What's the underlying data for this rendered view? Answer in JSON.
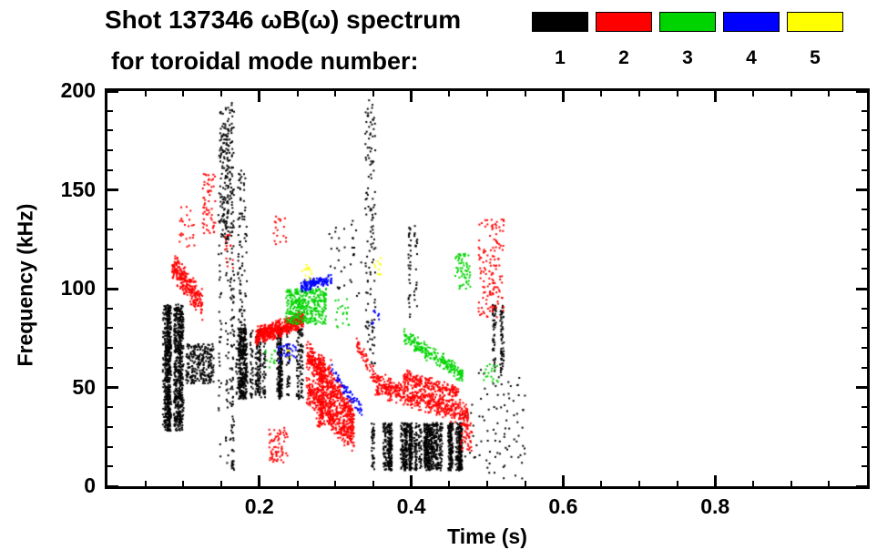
{
  "title": {
    "line1": "Shot 137346 ωB(ω) spectrum",
    "line2": "for toroidal mode number:"
  },
  "axes": {
    "xlabel": "Time (s)",
    "ylabel": "Frequency (kHz)",
    "x_ticks": [
      "0.2",
      "0.4",
      "0.6",
      "0.8"
    ],
    "y_ticks": [
      "0",
      "50",
      "100",
      "150",
      "200"
    ]
  },
  "chart_data": {
    "type": "scatter",
    "title": "Shot 137346 ωB(ω) spectrum for toroidal mode number",
    "xlabel": "Time (s)",
    "ylabel": "Frequency (kHz)",
    "xlim": [
      0.0,
      1.0
    ],
    "ylim": [
      0,
      200
    ],
    "x_tick_values": [
      0.2,
      0.4,
      0.6,
      0.8
    ],
    "y_tick_values": [
      0,
      50,
      100,
      150,
      200
    ],
    "x_minor_step": 0.05,
    "y_minor_step": 10,
    "grid": false,
    "legend": {
      "position": "top-right",
      "labels": [
        "1",
        "2",
        "3",
        "4",
        "5"
      ],
      "colors": [
        "#000000",
        "#ff0000",
        "#00d400",
        "#0000ff",
        "#ffff00"
      ]
    },
    "series": [
      {
        "name": "1",
        "meaning": "toroidal mode n=1",
        "color": "#000000"
      },
      {
        "name": "2",
        "meaning": "toroidal mode n=2",
        "color": "#ff0000"
      },
      {
        "name": "3",
        "meaning": "toroidal mode n=3",
        "color": "#00d400"
      },
      {
        "name": "4",
        "meaning": "toroidal mode n=4",
        "color": "#0000ff"
      },
      {
        "name": "5",
        "meaning": "toroidal mode n=5",
        "color": "#ffff00"
      }
    ],
    "clusters": [
      {
        "mode": 1,
        "type": "vlines",
        "t": [
          0.072,
          0.105
        ],
        "f": [
          28,
          92
        ],
        "n": 1100,
        "lines": 12
      },
      {
        "mode": 1,
        "type": "blob",
        "t": [
          0.103,
          0.14
        ],
        "f": [
          52,
          72
        ],
        "n": 260
      },
      {
        "mode": 1,
        "type": "vlines",
        "t": [
          0.148,
          0.168
        ],
        "f": [
          8,
          195
        ],
        "n": 220,
        "lines": 5
      },
      {
        "mode": 1,
        "type": "vlines",
        "t": [
          0.15,
          0.161
        ],
        "f": [
          125,
          192
        ],
        "n": 150,
        "lines": 4
      },
      {
        "mode": 1,
        "type": "vlines",
        "t": [
          0.165,
          0.262
        ],
        "f": [
          44,
          80
        ],
        "n": 900,
        "lines": 22
      },
      {
        "mode": 1,
        "type": "vlines",
        "t": [
          0.168,
          0.186
        ],
        "f": [
          80,
          160
        ],
        "n": 90,
        "lines": 3
      },
      {
        "mode": 1,
        "type": "vlines",
        "t": [
          0.34,
          0.358
        ],
        "f": [
          60,
          196
        ],
        "n": 130,
        "lines": 4
      },
      {
        "mode": 1,
        "type": "vlines",
        "t": [
          0.345,
          0.47
        ],
        "f": [
          8,
          32
        ],
        "n": 1500,
        "lines": 30
      },
      {
        "mode": 1,
        "type": "vlines",
        "t": [
          0.395,
          0.406
        ],
        "f": [
          85,
          132
        ],
        "n": 50,
        "lines": 2
      },
      {
        "mode": 1,
        "type": "blob",
        "t": [
          0.47,
          0.55
        ],
        "f": [
          2,
          60
        ],
        "n": 90
      },
      {
        "mode": 1,
        "type": "vlines",
        "t": [
          0.505,
          0.522
        ],
        "f": [
          58,
          92
        ],
        "n": 110,
        "lines": 4
      },
      {
        "mode": 1,
        "type": "blob",
        "t": [
          0.29,
          0.335
        ],
        "f": [
          95,
          135
        ],
        "n": 35
      },
      {
        "mode": 2,
        "type": "curve",
        "t": [
          0.085,
          0.125
        ],
        "f": [
          112,
          92
        ],
        "n": 260,
        "jitter": 8
      },
      {
        "mode": 2,
        "type": "blob",
        "t": [
          0.125,
          0.142
        ],
        "f": [
          128,
          158
        ],
        "n": 60
      },
      {
        "mode": 2,
        "type": "blob",
        "t": [
          0.095,
          0.115
        ],
        "f": [
          118,
          142
        ],
        "n": 25
      },
      {
        "mode": 2,
        "type": "curve",
        "t": [
          0.195,
          0.258
        ],
        "f": [
          76,
          84
        ],
        "n": 550,
        "jitter": 5
      },
      {
        "mode": 2,
        "type": "curve",
        "t": [
          0.262,
          0.325
        ],
        "f": [
          68,
          34
        ],
        "n": 450,
        "jitter": 10
      },
      {
        "mode": 2,
        "type": "curve",
        "t": [
          0.262,
          0.325
        ],
        "f": [
          50,
          24
        ],
        "n": 400,
        "jitter": 9
      },
      {
        "mode": 2,
        "type": "vlines",
        "t": [
          0.268,
          0.3
        ],
        "f": [
          30,
          65
        ],
        "n": 180,
        "lines": 5
      },
      {
        "mode": 2,
        "type": "blob",
        "t": [
          0.213,
          0.237
        ],
        "f": [
          12,
          30
        ],
        "n": 70
      },
      {
        "mode": 2,
        "type": "curve",
        "t": [
          0.352,
          0.475
        ],
        "f": [
          52,
          36
        ],
        "n": 550,
        "jitter": 7
      },
      {
        "mode": 2,
        "type": "curve",
        "t": [
          0.39,
          0.462
        ],
        "f": [
          56,
          47
        ],
        "n": 200,
        "jitter": 4
      },
      {
        "mode": 2,
        "type": "blob",
        "t": [
          0.488,
          0.522
        ],
        "f": [
          85,
          135
        ],
        "n": 140
      },
      {
        "mode": 2,
        "type": "curve",
        "t": [
          0.328,
          0.352
        ],
        "f": [
          72,
          55
        ],
        "n": 60,
        "jitter": 5
      },
      {
        "mode": 2,
        "type": "blob",
        "t": [
          0.218,
          0.236
        ],
        "f": [
          122,
          138
        ],
        "n": 18
      },
      {
        "mode": 2,
        "type": "blob",
        "t": [
          0.465,
          0.48
        ],
        "f": [
          18,
          32
        ],
        "n": 50
      },
      {
        "mode": 2,
        "type": "blob",
        "t": [
          0.153,
          0.166
        ],
        "f": [
          110,
          128
        ],
        "n": 15
      },
      {
        "mode": 3,
        "type": "blob",
        "t": [
          0.235,
          0.288
        ],
        "f": [
          82,
          100
        ],
        "n": 380
      },
      {
        "mode": 3,
        "type": "curve",
        "t": [
          0.39,
          0.468
        ],
        "f": [
          76,
          56
        ],
        "n": 220,
        "jitter": 5
      },
      {
        "mode": 3,
        "type": "blob",
        "t": [
          0.458,
          0.478
        ],
        "f": [
          100,
          118
        ],
        "n": 60
      },
      {
        "mode": 3,
        "type": "blob",
        "t": [
          0.298,
          0.318
        ],
        "f": [
          80,
          95
        ],
        "n": 20
      },
      {
        "mode": 3,
        "type": "blob",
        "t": [
          0.495,
          0.515
        ],
        "f": [
          52,
          62
        ],
        "n": 18
      },
      {
        "mode": 3,
        "type": "blob",
        "t": [
          0.208,
          0.222
        ],
        "f": [
          60,
          70
        ],
        "n": 12
      },
      {
        "mode": 4,
        "type": "curve",
        "t": [
          0.255,
          0.295
        ],
        "f": [
          101,
          105
        ],
        "n": 150,
        "jitter": 3
      },
      {
        "mode": 4,
        "type": "blob",
        "t": [
          0.225,
          0.248
        ],
        "f": [
          62,
          72
        ],
        "n": 35
      },
      {
        "mode": 4,
        "type": "curve",
        "t": [
          0.295,
          0.335
        ],
        "f": [
          58,
          38
        ],
        "n": 70,
        "jitter": 4
      },
      {
        "mode": 4,
        "type": "blob",
        "t": [
          0.348,
          0.358
        ],
        "f": [
          82,
          90
        ],
        "n": 10
      },
      {
        "mode": 5,
        "type": "blob",
        "t": [
          0.256,
          0.27
        ],
        "f": [
          104,
          112
        ],
        "n": 14
      },
      {
        "mode": 5,
        "type": "blob",
        "t": [
          0.35,
          0.362
        ],
        "f": [
          106,
          116
        ],
        "n": 10
      },
      {
        "mode": 5,
        "type": "blob",
        "t": [
          0.232,
          0.242
        ],
        "f": [
          64,
          70
        ],
        "n": 5
      }
    ]
  }
}
